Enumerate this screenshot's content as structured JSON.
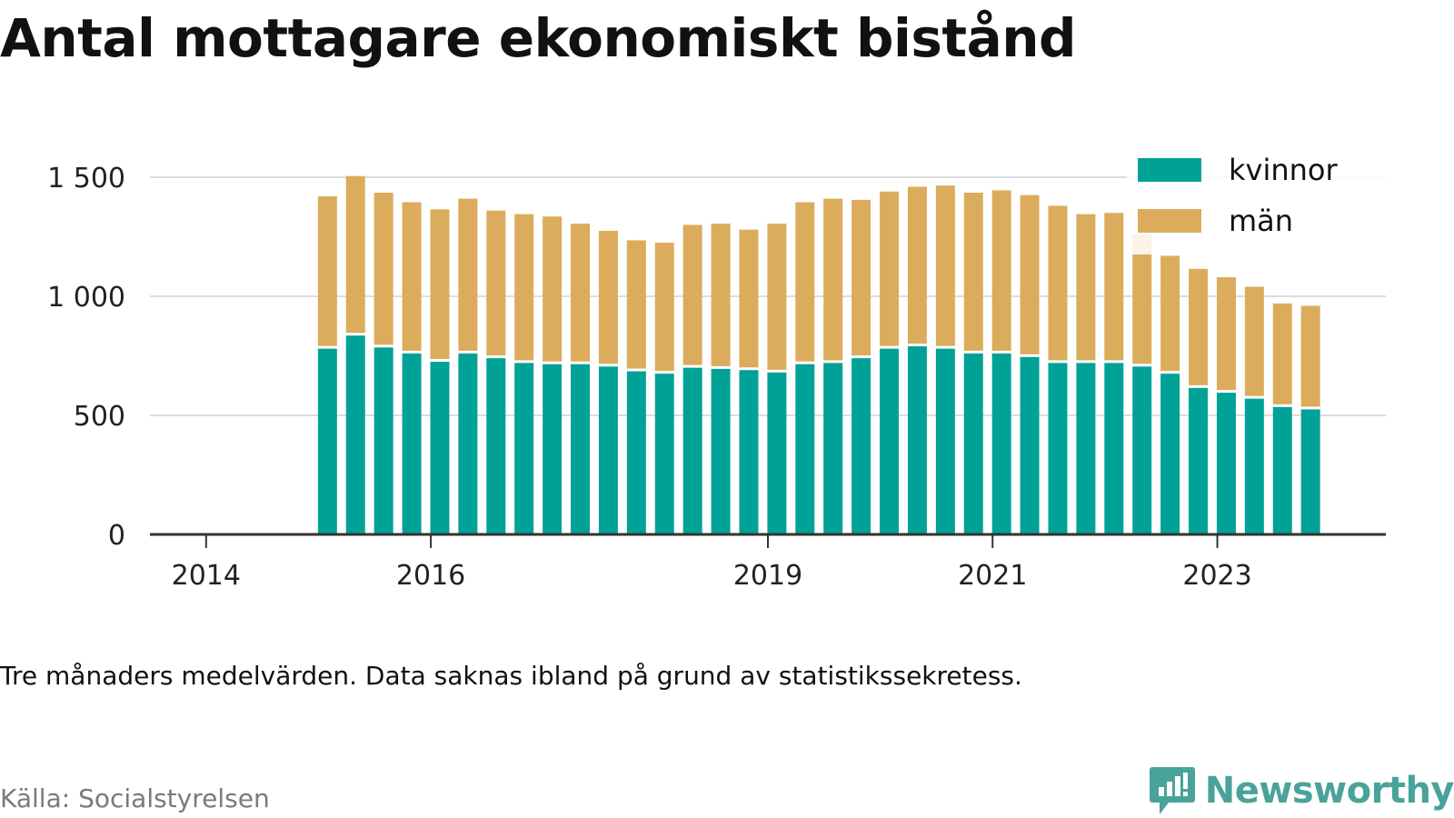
{
  "title": "Antal mottagare ekonomiskt bistånd",
  "note": "Tre månaders medelvärden. Data saknas ibland på grund av statistikssekretess.",
  "source": "Källa: Socialstyrelsen",
  "brand": {
    "name": "Newsworthy",
    "icon": "newsworthy-logo-icon",
    "color": "#4aa39a"
  },
  "colors": {
    "kvinnor": "#00a298",
    "man": "#dbac5b",
    "grid": "#dddddd",
    "axis": "#333333"
  },
  "chart_data": {
    "type": "bar",
    "stacked": true,
    "title": "Antal mottagare ekonomiskt bistånd",
    "xlabel": "",
    "ylabel": "",
    "ylim": [
      0,
      1500
    ],
    "yticks": [
      0,
      500,
      1000,
      1500
    ],
    "ytick_labels": [
      "0",
      "500",
      "1 000",
      "1 500"
    ],
    "xticks": [
      {
        "label": "2014",
        "x": 2014.0
      },
      {
        "label": "2016",
        "x": 2016.0
      },
      {
        "label": "2019",
        "x": 2019.0
      },
      {
        "label": "2021",
        "x": 2021.0
      },
      {
        "label": "2023",
        "x": 2023.0
      }
    ],
    "xlim": [
      2013.5,
      2024.5
    ],
    "grid": true,
    "legend_position": "top-right",
    "x": [
      2015.08,
      2015.33,
      2015.58,
      2015.83,
      2016.08,
      2016.33,
      2016.58,
      2016.83,
      2017.08,
      2017.33,
      2017.58,
      2017.83,
      2018.08,
      2018.33,
      2018.58,
      2018.83,
      2019.08,
      2019.33,
      2019.58,
      2019.83,
      2020.08,
      2020.33,
      2020.58,
      2020.83,
      2021.08,
      2021.33,
      2021.58,
      2021.83,
      2022.08,
      2022.33,
      2022.58,
      2022.83,
      2023.08,
      2023.33,
      2023.58,
      2023.83
    ],
    "series": [
      {
        "name": "kvinnor",
        "values": [
          780,
          835,
          785,
          760,
          725,
          760,
          740,
          720,
          715,
          715,
          705,
          685,
          675,
          700,
          695,
          690,
          680,
          715,
          720,
          740,
          780,
          790,
          780,
          760,
          760,
          745,
          720,
          720,
          720,
          705,
          675,
          615,
          595,
          570,
          535,
          525
        ]
      },
      {
        "name": "män",
        "values": [
          640,
          670,
          650,
          635,
          640,
          650,
          620,
          625,
          620,
          590,
          570,
          550,
          550,
          600,
          610,
          590,
          625,
          680,
          690,
          665,
          660,
          670,
          685,
          675,
          685,
          680,
          660,
          625,
          630,
          555,
          495,
          500,
          485,
          470,
          435,
          435
        ]
      }
    ]
  }
}
